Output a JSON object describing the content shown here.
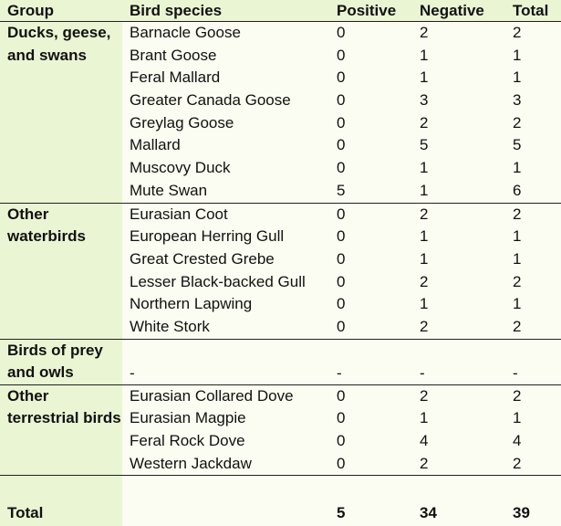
{
  "columns": [
    "Group",
    "Bird species",
    "Positive",
    "Negative",
    "Total"
  ],
  "sections": [
    {
      "group": "Ducks, geese, and swans",
      "rows": [
        [
          "Barnacle Goose",
          "0",
          "2",
          "2"
        ],
        [
          "Brant Goose",
          "0",
          "1",
          "1"
        ],
        [
          "Feral Mallard",
          "0",
          "1",
          "1"
        ],
        [
          "Greater Canada Goose",
          "0",
          "3",
          "3"
        ],
        [
          "Greylag Goose",
          "0",
          "2",
          "2"
        ],
        [
          "Mallard",
          "0",
          "5",
          "5"
        ],
        [
          "Muscovy Duck",
          "0",
          "1",
          "1"
        ],
        [
          "Mute Swan",
          "5",
          "1",
          "6"
        ]
      ]
    },
    {
      "group": "Other waterbirds",
      "rows": [
        [
          "Eurasian Coot",
          "0",
          "2",
          "2"
        ],
        [
          "European Herring Gull",
          "0",
          "1",
          "1"
        ],
        [
          "Great Crested Grebe",
          "0",
          "1",
          "1"
        ],
        [
          "Lesser Black-backed Gull",
          "0",
          "2",
          "2"
        ],
        [
          "Northern Lapwing",
          "0",
          "1",
          "1"
        ],
        [
          "White Stork",
          "0",
          "2",
          "2"
        ]
      ]
    },
    {
      "group": "Birds of prey and owls",
      "rows": [
        [
          "-",
          "-",
          "-",
          "-"
        ]
      ]
    },
    {
      "group": "Other terrestrial birds",
      "rows": [
        [
          "Eurasian Collared Dove",
          "0",
          "2",
          "2"
        ],
        [
          "Eurasian Magpie",
          "0",
          "1",
          "1"
        ],
        [
          "Feral Rock Dove",
          "0",
          "4",
          "4"
        ],
        [
          "Western Jackdaw",
          "0",
          "2",
          "2"
        ]
      ]
    }
  ],
  "total": {
    "label": "Total",
    "positive": "5",
    "negative": "34",
    "total": "39"
  },
  "colors": {
    "group_bg": "#eaf5d3",
    "cell_bg": "#fbfdf2",
    "rule": "#222222"
  }
}
